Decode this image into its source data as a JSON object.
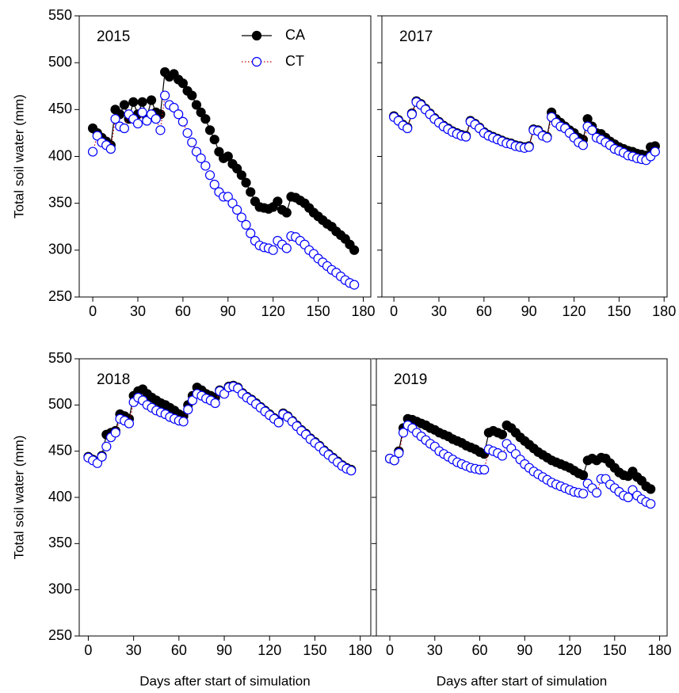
{
  "chart_data": [
    {
      "type": "line",
      "title": "2015",
      "ylabel": "Total soil water (mm)",
      "legend": true,
      "ytick_labels": true,
      "xlim": [
        -9,
        185
      ],
      "ylim": [
        250,
        550
      ],
      "xticks": [
        0,
        30,
        60,
        90,
        120,
        150,
        180
      ],
      "yticks": [
        250,
        300,
        350,
        400,
        450,
        500,
        550
      ],
      "x": [
        0,
        3,
        6,
        9,
        12,
        15,
        18,
        21,
        24,
        27,
        30,
        33,
        36,
        39,
        42,
        45,
        48,
        51,
        54,
        57,
        60,
        63,
        66,
        69,
        72,
        75,
        78,
        81,
        84,
        87,
        90,
        93,
        96,
        99,
        102,
        105,
        108,
        111,
        114,
        117,
        120,
        123,
        126,
        129,
        132,
        135,
        138,
        141,
        144,
        147,
        150,
        153,
        156,
        159,
        162,
        165,
        168,
        171,
        174
      ],
      "series": [
        {
          "name": "CA",
          "color": "#000000",
          "marker_fill": "#000000",
          "line_color": "#000000",
          "line_style": "solid",
          "values": [
            430,
            425,
            420,
            416,
            412,
            450,
            445,
            455,
            440,
            458,
            445,
            458,
            442,
            460,
            447,
            445,
            490,
            485,
            488,
            482,
            478,
            470,
            465,
            455,
            447,
            440,
            428,
            418,
            405,
            398,
            400,
            392,
            387,
            380,
            372,
            362,
            352,
            346,
            345,
            344,
            346,
            352,
            343,
            340,
            357,
            356,
            353,
            350,
            345,
            340,
            336,
            332,
            328,
            325,
            320,
            316,
            312,
            306,
            300
          ]
        },
        {
          "name": "CT",
          "color": "#0000ff",
          "marker_fill": "#ffffff",
          "line_color": "#c00000",
          "line_style": "dotted",
          "values": [
            405,
            422,
            415,
            412,
            408,
            440,
            432,
            430,
            445,
            440,
            435,
            447,
            438,
            445,
            440,
            428,
            465,
            455,
            452,
            445,
            437,
            425,
            415,
            405,
            398,
            390,
            380,
            370,
            362,
            357,
            357,
            350,
            343,
            335,
            327,
            318,
            310,
            305,
            303,
            302,
            300,
            310,
            306,
            302,
            315,
            314,
            310,
            306,
            300,
            296,
            291,
            287,
            283,
            279,
            276,
            272,
            268,
            265,
            263
          ]
        }
      ]
    },
    {
      "type": "line",
      "title": "2017",
      "legend": false,
      "ytick_labels": false,
      "xlim": [
        -8,
        182
      ],
      "ylim": [
        250,
        550
      ],
      "xticks": [
        0,
        30,
        60,
        90,
        120,
        150,
        180
      ],
      "yticks": [
        250,
        300,
        350,
        400,
        450,
        500,
        550
      ],
      "x": [
        0,
        3,
        6,
        9,
        12,
        15,
        18,
        21,
        24,
        27,
        30,
        33,
        36,
        39,
        42,
        45,
        48,
        51,
        54,
        57,
        60,
        63,
        66,
        69,
        72,
        75,
        78,
        81,
        84,
        87,
        90,
        93,
        96,
        99,
        102,
        105,
        108,
        111,
        114,
        117,
        120,
        123,
        126,
        129,
        132,
        135,
        138,
        141,
        144,
        147,
        150,
        153,
        156,
        159,
        162,
        165,
        168,
        171,
        174
      ],
      "series": [
        {
          "name": "CA",
          "color": "#000000",
          "marker_fill": "#000000",
          "line_color": "#000000",
          "line_style": "solid",
          "values": [
            443,
            439,
            434,
            431,
            446,
            459,
            456,
            451,
            446,
            441,
            437,
            433,
            430,
            427,
            425,
            423,
            422,
            438,
            435,
            431,
            426,
            423,
            421,
            419,
            417,
            415,
            414,
            412,
            411,
            410,
            411,
            429,
            428,
            423,
            421,
            447,
            440,
            436,
            432,
            428,
            425,
            420,
            418,
            440,
            432,
            425,
            424,
            420,
            416,
            413,
            410,
            408,
            406,
            405,
            403,
            402,
            401,
            410,
            411
          ]
        },
        {
          "name": "CT",
          "color": "#0000ff",
          "marker_fill": "#ffffff",
          "line_color": "#c00000",
          "line_style": "dotted",
          "values": [
            442,
            438,
            433,
            430,
            445,
            458,
            455,
            450,
            445,
            440,
            436,
            432,
            429,
            426,
            424,
            422,
            421,
            437,
            434,
            430,
            425,
            422,
            420,
            418,
            416,
            414,
            413,
            411,
            410,
            409,
            410,
            428,
            427,
            422,
            420,
            442,
            436,
            432,
            430,
            425,
            420,
            415,
            412,
            432,
            428,
            420,
            418,
            415,
            412,
            408,
            406,
            404,
            401,
            400,
            398,
            397,
            396,
            400,
            405
          ]
        }
      ]
    },
    {
      "type": "line",
      "title": "2018",
      "ylabel": "Total soil water (mm)",
      "xlabel": "Days after start of simulation",
      "legend": false,
      "ytick_labels": true,
      "xlim": [
        -6,
        187
      ],
      "ylim": [
        250,
        550
      ],
      "xticks": [
        0,
        30,
        60,
        90,
        120,
        150,
        180
      ],
      "yticks": [
        250,
        300,
        350,
        400,
        450,
        500,
        550
      ],
      "x": [
        0,
        3,
        6,
        9,
        12,
        15,
        18,
        21,
        24,
        27,
        30,
        33,
        36,
        39,
        42,
        45,
        48,
        51,
        54,
        57,
        60,
        63,
        66,
        69,
        72,
        75,
        78,
        81,
        84,
        87,
        90,
        93,
        96,
        99,
        102,
        105,
        108,
        111,
        114,
        117,
        120,
        123,
        126,
        129,
        132,
        135,
        138,
        141,
        144,
        147,
        150,
        153,
        156,
        159,
        162,
        165,
        168,
        171,
        174
      ],
      "series": [
        {
          "name": "CA",
          "color": "#000000",
          "marker_fill": "#000000",
          "line_color": "#000000",
          "line_style": "solid",
          "values": [
            444,
            441,
            438,
            445,
            468,
            470,
            472,
            490,
            488,
            485,
            510,
            515,
            517,
            512,
            508,
            505,
            502,
            500,
            497,
            494,
            490,
            488,
            500,
            510,
            519,
            516,
            512,
            510,
            508,
            516,
            513,
            520,
            521,
            519,
            513,
            509,
            506,
            502,
            498,
            494,
            490,
            486,
            482,
            491,
            488,
            483,
            478,
            473,
            469,
            464,
            460,
            456,
            451,
            447,
            443,
            439,
            435,
            432,
            430
          ]
        },
        {
          "name": "CT",
          "color": "#0000ff",
          "marker_fill": "#ffffff",
          "line_color": "#c00000",
          "line_style": "dotted",
          "values": [
            443,
            440,
            437,
            444,
            455,
            465,
            470,
            485,
            483,
            480,
            503,
            508,
            505,
            500,
            497,
            494,
            492,
            490,
            487,
            485,
            483,
            482,
            495,
            505,
            512,
            510,
            507,
            505,
            502,
            515,
            512,
            519,
            520,
            518,
            512,
            508,
            505,
            501,
            497,
            493,
            489,
            485,
            481,
            490,
            487,
            482,
            477,
            472,
            468,
            463,
            459,
            455,
            450,
            446,
            442,
            438,
            434,
            431,
            429
          ]
        }
      ]
    },
    {
      "type": "line",
      "title": "2019",
      "xlabel": "Days after start of simulation",
      "legend": false,
      "ytick_labels": false,
      "xlim": [
        -9,
        185
      ],
      "ylim": [
        250,
        550
      ],
      "xticks": [
        0,
        30,
        60,
        90,
        120,
        150,
        180
      ],
      "yticks": [
        250,
        300,
        350,
        400,
        450,
        500,
        550
      ],
      "x": [
        0,
        3,
        6,
        9,
        12,
        15,
        18,
        21,
        24,
        27,
        30,
        33,
        36,
        39,
        42,
        45,
        48,
        51,
        54,
        57,
        60,
        63,
        66,
        69,
        72,
        75,
        78,
        81,
        84,
        87,
        90,
        93,
        96,
        99,
        102,
        105,
        108,
        111,
        114,
        117,
        120,
        123,
        126,
        129,
        132,
        135,
        138,
        141,
        144,
        147,
        150,
        153,
        156,
        159,
        162,
        165,
        168,
        171,
        174
      ],
      "series": [
        {
          "name": "CA",
          "color": "#000000",
          "marker_fill": "#000000",
          "line_color": "#000000",
          "line_style": "solid",
          "values": [
            442,
            440,
            450,
            475,
            485,
            484,
            482,
            480,
            478,
            475,
            473,
            470,
            468,
            466,
            463,
            461,
            459,
            456,
            454,
            452,
            449,
            447,
            470,
            472,
            470,
            468,
            478,
            475,
            470,
            465,
            461,
            457,
            453,
            449,
            446,
            443,
            440,
            438,
            436,
            434,
            432,
            429,
            426,
            424,
            440,
            442,
            440,
            443,
            442,
            437,
            432,
            427,
            424,
            423,
            428,
            422,
            418,
            412,
            409
          ]
        },
        {
          "name": "CT",
          "color": "#0000ff",
          "marker_fill": "#ffffff",
          "line_color": "#c00000",
          "line_style": "dotted",
          "values": [
            442,
            440,
            448,
            470,
            478,
            475,
            470,
            466,
            462,
            458,
            455,
            450,
            447,
            444,
            441,
            438,
            436,
            434,
            432,
            431,
            430,
            430,
            452,
            450,
            448,
            445,
            458,
            453,
            447,
            441,
            436,
            432,
            428,
            425,
            422,
            419,
            416,
            414,
            412,
            410,
            408,
            406,
            405,
            404,
            415,
            410,
            405,
            420,
            420,
            414,
            410,
            406,
            402,
            400,
            408,
            402,
            398,
            395,
            393
          ]
        }
      ]
    }
  ]
}
